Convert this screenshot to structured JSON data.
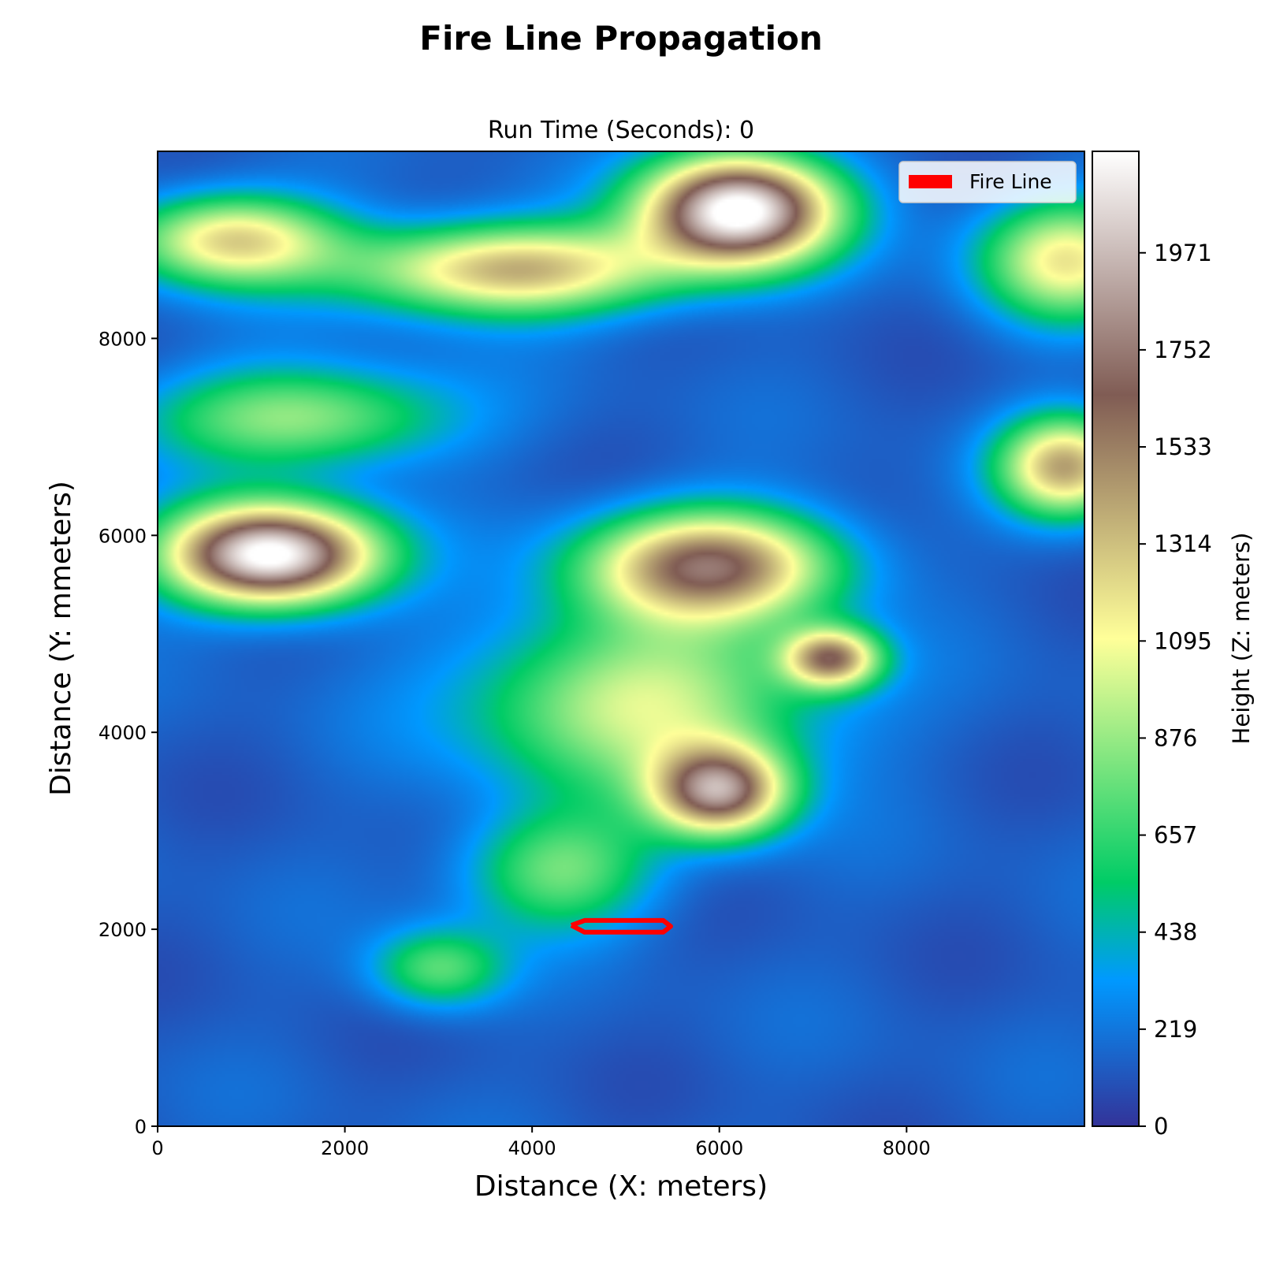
{
  "figure": {
    "suptitle": "Fire Line Propagation"
  },
  "chart_data": {
    "type": "heatmap",
    "subtitle": "Run Time (Seconds):  0",
    "xlabel": "Distance (X: meters)",
    "ylabel": "Distance (Y: mmeters)",
    "xlim": [
      0,
      9900
    ],
    "ylim": [
      0,
      9900
    ],
    "x_ticks": [
      0,
      2000,
      4000,
      6000,
      8000
    ],
    "y_ticks": [
      0,
      2000,
      4000,
      6000,
      8000
    ],
    "colormap": "terrain",
    "colorbar": {
      "label": "Height (Z: meters)",
      "range": [
        0,
        2200
      ],
      "ticks": [
        0,
        219,
        438,
        657,
        876,
        1095,
        1314,
        1533,
        1752,
        1971
      ]
    },
    "legend": {
      "placement": "upper right",
      "entries": [
        {
          "label": "Fire Line",
          "color": "#ff0000"
        }
      ]
    },
    "terrain_features": [
      {
        "x": 1200,
        "y": 5800,
        "height": 2150,
        "spread_x": 1100,
        "spread_y": 500
      },
      {
        "x": 6200,
        "y": 9300,
        "height": 2150,
        "spread_x": 1000,
        "spread_y": 550
      },
      {
        "x": 5900,
        "y": 5700,
        "height": 1500,
        "spread_x": 1300,
        "spread_y": 550
      },
      {
        "x": 6000,
        "y": 3400,
        "height": 1550,
        "spread_x": 700,
        "spread_y": 450
      },
      {
        "x": 7200,
        "y": 4750,
        "height": 1300,
        "spread_x": 500,
        "spread_y": 300
      },
      {
        "x": 9700,
        "y": 6700,
        "height": 1250,
        "spread_x": 700,
        "spread_y": 500
      },
      {
        "x": 3800,
        "y": 8700,
        "height": 1250,
        "spread_x": 1700,
        "spread_y": 450
      },
      {
        "x": 800,
        "y": 9000,
        "height": 1100,
        "spread_x": 1100,
        "spread_y": 450
      },
      {
        "x": 5200,
        "y": 4300,
        "height": 900,
        "spread_x": 1800,
        "spread_y": 900
      },
      {
        "x": 1500,
        "y": 7200,
        "height": 750,
        "spread_x": 1600,
        "spread_y": 500
      },
      {
        "x": 3000,
        "y": 1600,
        "height": 600,
        "spread_x": 700,
        "spread_y": 400
      },
      {
        "x": 9700,
        "y": 8800,
        "height": 1000,
        "spread_x": 900,
        "spread_y": 600
      },
      {
        "x": 4300,
        "y": 2600,
        "height": 650,
        "spread_x": 1000,
        "spread_y": 600
      }
    ],
    "fire_line": {
      "label": "Fire Line",
      "color": "#ff0000",
      "points": [
        [
          4420,
          2040
        ],
        [
          4560,
          2090
        ],
        [
          5400,
          2090
        ],
        [
          5480,
          2030
        ],
        [
          5400,
          1970
        ],
        [
          4560,
          1970
        ],
        [
          4420,
          2040
        ]
      ]
    }
  }
}
